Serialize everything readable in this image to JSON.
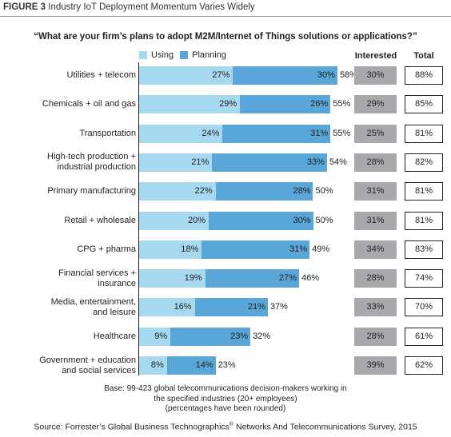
{
  "figure": {
    "label": "FIGURE 3",
    "title": "Industry IoT Deployment Momentum Varies Widely"
  },
  "colors": {
    "using": "#a6d9ef",
    "planning": "#5aa6d8",
    "interested": "#a7a9ac"
  },
  "chart_data": {
    "type": "bar",
    "orientation": "horizontal",
    "stacked": true,
    "title": "“What are your firm’s plans to adopt M2M/Internet of Things solutions or applications?”",
    "categories": [
      "Utilities + telecom",
      "Chemicals + oil and gas",
      "Transportation",
      "High-tech production + industrial production",
      "Primary manufacturing",
      "Retail + wholesale",
      "CPG + pharma",
      "Financial services + insurance",
      "Media, entertainment, and leisure",
      "Healthcare",
      "Government + education and social services"
    ],
    "category_lines": [
      [
        "Utilities + telecom"
      ],
      [
        "Chemicals + oil and gas"
      ],
      [
        "Transportation"
      ],
      [
        "High-tech production +",
        "industrial production"
      ],
      [
        "Primary manufacturing"
      ],
      [
        "Retail + wholesale"
      ],
      [
        "CPG + pharma"
      ],
      [
        "Financial services +",
        "insurance"
      ],
      [
        "Media, entertainment,",
        "and leisure"
      ],
      [
        "Healthcare"
      ],
      [
        "Government + education",
        "and social services"
      ]
    ],
    "series": [
      {
        "name": "Using",
        "values": [
          27,
          29,
          24,
          21,
          22,
          20,
          18,
          19,
          16,
          9,
          8
        ]
      },
      {
        "name": "Planning",
        "values": [
          30,
          26,
          31,
          33,
          28,
          30,
          31,
          27,
          21,
          23,
          14
        ]
      }
    ],
    "using_planning_totals": [
      58,
      55,
      55,
      54,
      50,
      50,
      49,
      46,
      37,
      32,
      23
    ],
    "interested": [
      30,
      29,
      25,
      28,
      31,
      31,
      34,
      28,
      33,
      28,
      39
    ],
    "total": [
      88,
      85,
      81,
      82,
      81,
      81,
      83,
      74,
      70,
      61,
      62
    ],
    "columns": {
      "interested": "Interested",
      "total": "Total"
    },
    "legend": "top-left",
    "xlim": [
      0,
      100
    ],
    "unit": "%"
  },
  "base_note": [
    "Base: 99-423 global telecommunications decision-makers working in",
    "the specified industries (20+ employees)",
    "(percentages have been rounded)"
  ],
  "source": {
    "text": "Source: Forrester’s Global Business Technographics",
    "sup": "®",
    "text2": " Networks And Telecommunications Survey, 2015"
  }
}
